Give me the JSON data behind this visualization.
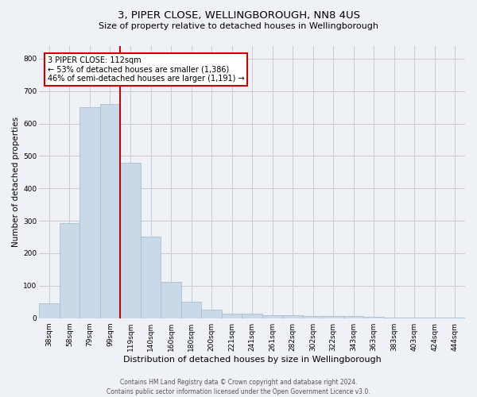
{
  "title1": "3, PIPER CLOSE, WELLINGBOROUGH, NN8 4US",
  "title2": "Size of property relative to detached houses in Wellingborough",
  "xlabel": "Distribution of detached houses by size in Wellingborough",
  "ylabel": "Number of detached properties",
  "footer1": "Contains HM Land Registry data © Crown copyright and database right 2024.",
  "footer2": "Contains public sector information licensed under the Open Government Licence v3.0.",
  "categories": [
    "38sqm",
    "58sqm",
    "79sqm",
    "99sqm",
    "119sqm",
    "140sqm",
    "160sqm",
    "180sqm",
    "200sqm",
    "221sqm",
    "241sqm",
    "261sqm",
    "282sqm",
    "302sqm",
    "322sqm",
    "343sqm",
    "363sqm",
    "383sqm",
    "403sqm",
    "424sqm",
    "444sqm"
  ],
  "values": [
    45,
    293,
    651,
    661,
    480,
    251,
    113,
    50,
    25,
    14,
    14,
    8,
    8,
    6,
    7,
    7,
    5,
    2,
    2,
    1,
    2
  ],
  "bar_color": "#c9d9e8",
  "bar_edge_color": "#a0b8cc",
  "grid_color": "#cccccc",
  "bg_color": "#eef2f7",
  "vline_x_index": 3.5,
  "vline_color": "#cc0000",
  "annotation_text": "3 PIPER CLOSE: 112sqm\n← 53% of detached houses are smaller (1,386)\n46% of semi-detached houses are larger (1,191) →",
  "annotation_box_color": "#ffffff",
  "annotation_border_color": "#cc0000",
  "ylim": [
    0,
    840
  ],
  "yticks": [
    0,
    100,
    200,
    300,
    400,
    500,
    600,
    700,
    800
  ],
  "title1_fontsize": 9.5,
  "title2_fontsize": 8.0,
  "ylabel_fontsize": 7.5,
  "xlabel_fontsize": 8.0,
  "footer_fontsize": 5.5,
  "annotation_fontsize": 7.0,
  "tick_fontsize": 6.5
}
